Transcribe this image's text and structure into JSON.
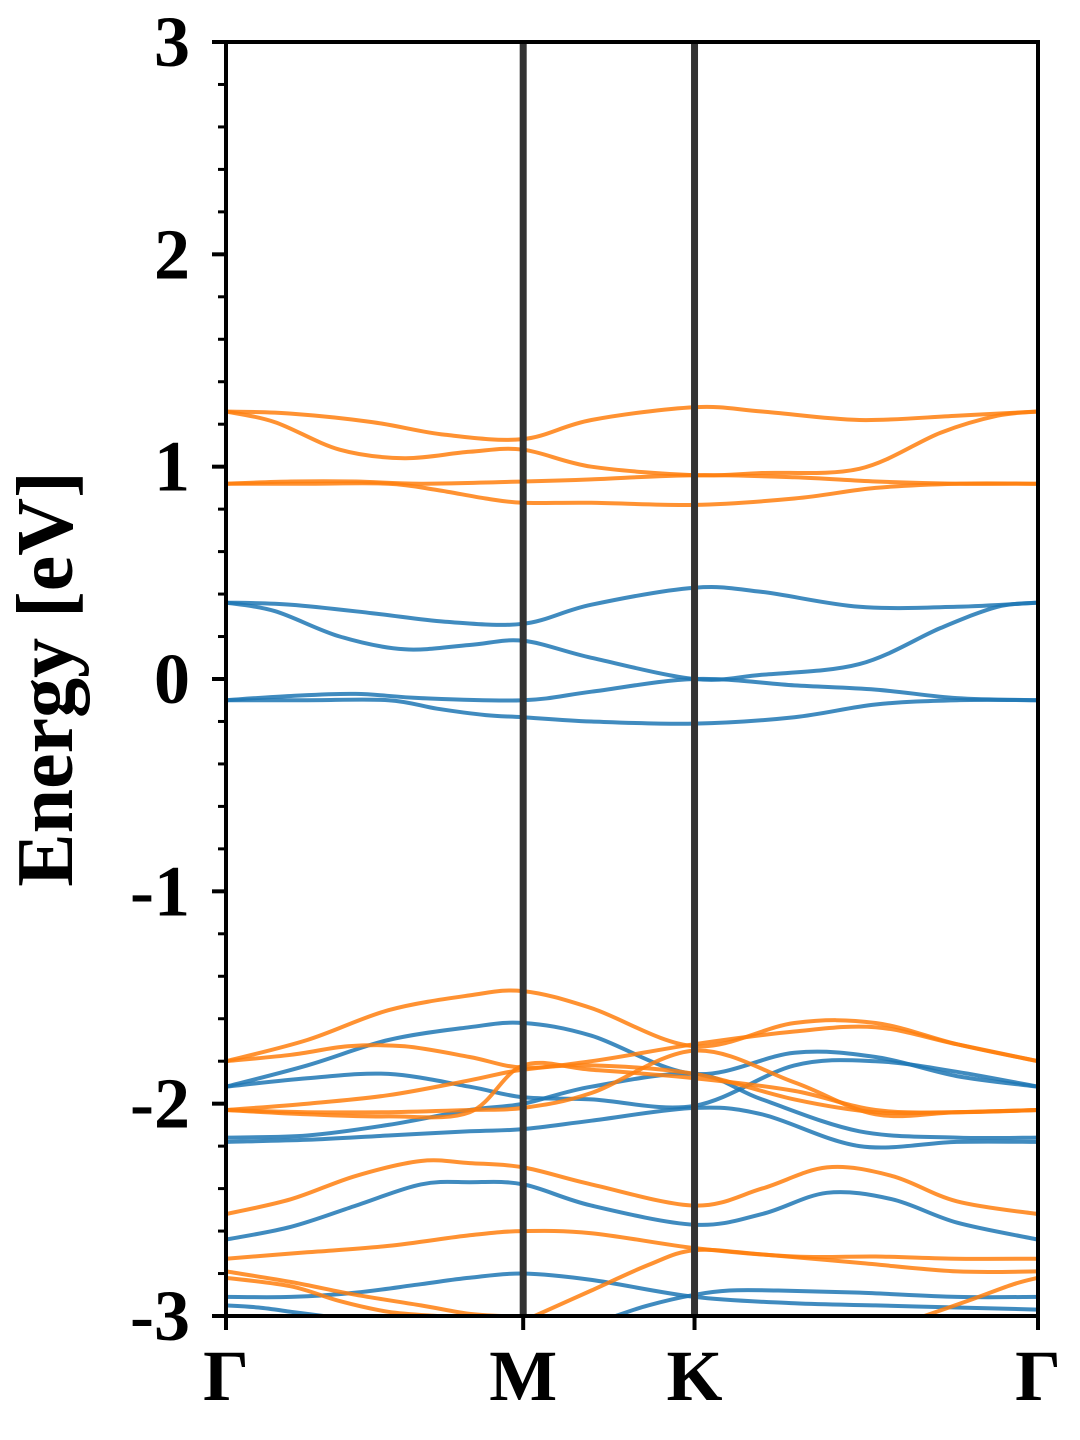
{
  "chart_data": {
    "type": "line",
    "title": "",
    "xlabel": "",
    "ylabel": "Energy [eV]",
    "ylim": [
      -3,
      3
    ],
    "yticks": [
      "3",
      "2",
      "1",
      "0",
      "-1",
      "-2",
      "-3"
    ],
    "high_symmetry_points": [
      {
        "label": "Γ",
        "x": 0.0
      },
      {
        "label": "M",
        "x": 0.366
      },
      {
        "label": "K",
        "x": 0.577
      },
      {
        "label": "Γ",
        "x": 1.0
      }
    ],
    "colors": {
      "blue": "#1f77b4",
      "orange": "#ff7f0e",
      "axis": "#000000",
      "symline": "#333333"
    },
    "series": [
      {
        "color": "blue",
        "x": [
          0,
          0.08,
          0.18,
          0.27,
          0.366,
          0.45,
          0.577,
          0.66,
          0.78,
          0.9,
          1.0
        ],
        "values": [
          0.36,
          0.35,
          0.31,
          0.27,
          0.26,
          0.35,
          0.43,
          0.41,
          0.34,
          0.34,
          0.36
        ]
      },
      {
        "color": "blue",
        "x": [
          0,
          0.06,
          0.14,
          0.22,
          0.3,
          0.366,
          0.45,
          0.577,
          0.66,
          0.78,
          0.88,
          0.95,
          1.0
        ],
        "values": [
          0.36,
          0.32,
          0.2,
          0.14,
          0.16,
          0.18,
          0.1,
          0.0,
          0.02,
          0.07,
          0.24,
          0.34,
          0.36
        ]
      },
      {
        "color": "blue",
        "x": [
          0,
          0.08,
          0.16,
          0.24,
          0.366,
          0.45,
          0.577,
          0.7,
          0.8,
          0.9,
          1.0
        ],
        "values": [
          -0.1,
          -0.08,
          -0.07,
          -0.09,
          -0.1,
          -0.06,
          0.0,
          -0.03,
          -0.05,
          -0.09,
          -0.1
        ]
      },
      {
        "color": "blue",
        "x": [
          0,
          0.1,
          0.2,
          0.26,
          0.32,
          0.366,
          0.45,
          0.577,
          0.7,
          0.8,
          0.9,
          1.0
        ],
        "values": [
          -0.1,
          -0.1,
          -0.1,
          -0.14,
          -0.17,
          -0.18,
          -0.2,
          -0.21,
          -0.18,
          -0.12,
          -0.1,
          -0.1
        ]
      },
      {
        "color": "orange",
        "x": [
          0,
          0.08,
          0.18,
          0.27,
          0.366,
          0.45,
          0.577,
          0.66,
          0.78,
          0.9,
          1.0
        ],
        "values": [
          1.26,
          1.25,
          1.21,
          1.15,
          1.13,
          1.22,
          1.28,
          1.26,
          1.22,
          1.24,
          1.26
        ]
      },
      {
        "color": "orange",
        "x": [
          0,
          0.06,
          0.14,
          0.22,
          0.3,
          0.366,
          0.45,
          0.577,
          0.66,
          0.78,
          0.88,
          0.95,
          1.0
        ],
        "values": [
          1.26,
          1.21,
          1.08,
          1.04,
          1.07,
          1.08,
          1.0,
          0.96,
          0.97,
          0.99,
          1.16,
          1.24,
          1.26
        ]
      },
      {
        "color": "orange",
        "x": [
          0,
          0.08,
          0.16,
          0.24,
          0.366,
          0.45,
          0.577,
          0.7,
          0.8,
          0.9,
          1.0
        ],
        "values": [
          0.92,
          0.93,
          0.93,
          0.92,
          0.93,
          0.94,
          0.96,
          0.95,
          0.93,
          0.92,
          0.92
        ]
      },
      {
        "color": "orange",
        "x": [
          0,
          0.1,
          0.2,
          0.26,
          0.32,
          0.366,
          0.45,
          0.577,
          0.7,
          0.8,
          0.9,
          1.0
        ],
        "values": [
          0.92,
          0.92,
          0.92,
          0.89,
          0.85,
          0.83,
          0.83,
          0.82,
          0.85,
          0.9,
          0.92,
          0.92
        ]
      },
      {
        "color": "blue",
        "x": [
          0,
          0.1,
          0.2,
          0.3,
          0.366,
          0.45,
          0.577,
          0.7,
          0.8,
          0.9,
          1.0
        ],
        "values": [
          -1.92,
          -1.82,
          -1.7,
          -1.64,
          -1.62,
          -1.68,
          -1.86,
          -1.76,
          -1.78,
          -1.87,
          -1.92
        ]
      },
      {
        "color": "blue",
        "x": [
          0,
          0.1,
          0.2,
          0.3,
          0.366,
          0.45,
          0.577,
          0.7,
          0.8,
          0.9,
          1.0
        ],
        "values": [
          -1.92,
          -1.88,
          -1.86,
          -1.92,
          -1.97,
          -1.98,
          -2.01,
          -1.82,
          -1.8,
          -1.85,
          -1.92
        ]
      },
      {
        "color": "blue",
        "x": [
          0,
          0.1,
          0.2,
          0.3,
          0.366,
          0.45,
          0.577,
          0.66,
          0.78,
          0.9,
          1.0
        ],
        "values": [
          -2.16,
          -2.15,
          -2.1,
          -2.03,
          -2.0,
          -1.92,
          -1.86,
          -1.98,
          -2.13,
          -2.16,
          -2.16
        ]
      },
      {
        "color": "blue",
        "x": [
          0,
          0.1,
          0.2,
          0.3,
          0.366,
          0.45,
          0.577,
          0.66,
          0.78,
          0.9,
          1.0
        ],
        "values": [
          -2.18,
          -2.17,
          -2.15,
          -2.13,
          -2.12,
          -2.08,
          -2.02,
          -2.05,
          -2.2,
          -2.18,
          -2.18
        ]
      },
      {
        "color": "blue",
        "x": [
          0,
          0.08,
          0.16,
          0.24,
          0.3,
          0.366,
          0.45,
          0.577,
          0.66,
          0.74,
          0.82,
          0.9,
          1.0
        ],
        "values": [
          -2.64,
          -2.58,
          -2.48,
          -2.38,
          -2.37,
          -2.38,
          -2.48,
          -2.57,
          -2.52,
          -2.42,
          -2.45,
          -2.56,
          -2.64
        ]
      },
      {
        "color": "blue",
        "x": [
          0,
          0.08,
          0.16,
          0.24,
          0.3,
          0.366,
          0.45,
          0.577,
          0.7,
          0.8,
          0.9,
          1.0
        ],
        "values": [
          -2.91,
          -2.91,
          -2.89,
          -2.85,
          -2.82,
          -2.8,
          -2.83,
          -2.91,
          -2.94,
          -2.95,
          -2.96,
          -2.97
        ]
      },
      {
        "color": "blue",
        "x": [
          0,
          0.04,
          0.08,
          0.12
        ],
        "values": [
          -2.95,
          -2.96,
          -2.98,
          -3.0
        ]
      },
      {
        "color": "blue",
        "x": [
          0.48,
          0.52,
          0.577,
          0.62,
          0.68,
          0.78,
          0.9,
          1.0
        ],
        "values": [
          -3.0,
          -2.95,
          -2.9,
          -2.88,
          -2.88,
          -2.89,
          -2.91,
          -2.91
        ]
      },
      {
        "color": "orange",
        "x": [
          0,
          0.1,
          0.2,
          0.3,
          0.366,
          0.45,
          0.577,
          0.7,
          0.8,
          0.9,
          1.0
        ],
        "values": [
          -1.8,
          -1.7,
          -1.56,
          -1.49,
          -1.47,
          -1.55,
          -1.73,
          -1.62,
          -1.62,
          -1.72,
          -1.8
        ]
      },
      {
        "color": "orange",
        "x": [
          0,
          0.08,
          0.15,
          0.22,
          0.3,
          0.366,
          0.45,
          0.577,
          0.7,
          0.8,
          0.9,
          1.0
        ],
        "values": [
          -1.8,
          -1.77,
          -1.73,
          -1.73,
          -1.78,
          -1.83,
          -1.8,
          -1.72,
          -1.66,
          -1.64,
          -1.72,
          -1.8
        ]
      },
      {
        "color": "orange",
        "x": [
          0,
          0.1,
          0.2,
          0.3,
          0.366,
          0.45,
          0.577,
          0.7,
          0.8,
          0.9,
          1.0
        ],
        "values": [
          -2.03,
          -2.0,
          -1.96,
          -1.89,
          -1.84,
          -1.82,
          -1.86,
          -1.98,
          -2.04,
          -2.04,
          -2.03
        ]
      },
      {
        "color": "orange",
        "x": [
          0,
          0.1,
          0.2,
          0.3,
          0.366,
          0.45,
          0.577,
          0.7,
          0.8,
          0.9,
          1.0
        ],
        "values": [
          -2.03,
          -2.04,
          -2.04,
          -2.03,
          -2.02,
          -1.95,
          -1.75,
          -1.9,
          -2.05,
          -2.04,
          -2.03
        ]
      },
      {
        "color": "orange",
        "x": [
          0,
          0.1,
          0.2,
          0.3,
          0.366,
          0.45,
          0.577,
          0.7,
          0.8,
          0.9,
          1.0
        ],
        "values": [
          -2.03,
          -2.05,
          -2.06,
          -2.04,
          -1.82,
          -1.84,
          -1.88,
          -1.94,
          -2.03,
          -2.04,
          -2.03
        ]
      },
      {
        "color": "orange",
        "x": [
          0,
          0.08,
          0.16,
          0.24,
          0.3,
          0.366,
          0.45,
          0.577,
          0.66,
          0.74,
          0.82,
          0.9,
          1.0
        ],
        "values": [
          -2.52,
          -2.45,
          -2.34,
          -2.27,
          -2.28,
          -2.3,
          -2.38,
          -2.48,
          -2.4,
          -2.3,
          -2.34,
          -2.46,
          -2.52
        ]
      },
      {
        "color": "orange",
        "x": [
          0,
          0.1,
          0.2,
          0.3,
          0.366,
          0.45,
          0.577,
          0.7,
          0.8,
          0.9,
          1.0
        ],
        "values": [
          -2.73,
          -2.7,
          -2.67,
          -2.62,
          -2.6,
          -2.61,
          -2.68,
          -2.72,
          -2.72,
          -2.73,
          -2.73
        ]
      },
      {
        "color": "orange",
        "x": [
          0,
          0.08,
          0.16,
          0.24,
          0.3,
          0.34
        ],
        "values": [
          -2.79,
          -2.84,
          -2.9,
          -2.95,
          -2.99,
          -3.0
        ]
      },
      {
        "color": "orange",
        "x": [
          0.38,
          0.45,
          0.52,
          0.577,
          0.66,
          0.78,
          0.9,
          1.0
        ],
        "values": [
          -3.0,
          -2.88,
          -2.76,
          -2.69,
          -2.71,
          -2.75,
          -2.79,
          -2.79
        ]
      },
      {
        "color": "orange",
        "x": [
          0,
          0.08,
          0.14,
          0.2,
          0.26
        ],
        "values": [
          -2.82,
          -2.86,
          -2.93,
          -2.98,
          -3.0
        ]
      },
      {
        "color": "orange",
        "x": [
          0.86,
          0.92,
          0.97,
          1.0
        ],
        "values": [
          -3.0,
          -2.92,
          -2.85,
          -2.82
        ]
      }
    ]
  }
}
